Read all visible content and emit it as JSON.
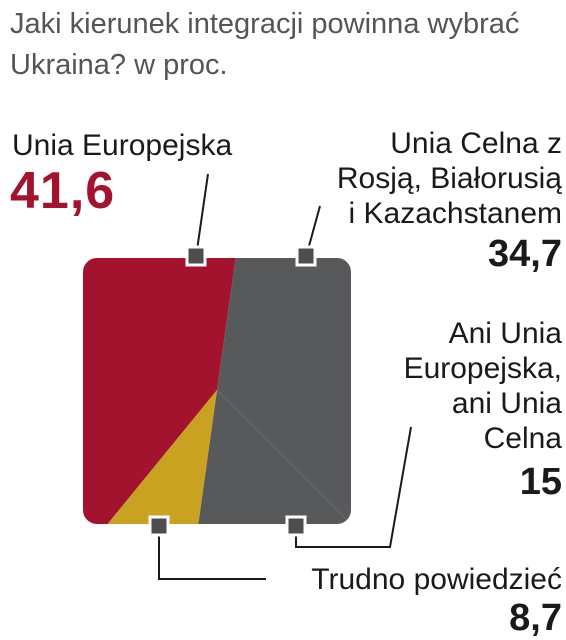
{
  "chart_data": {
    "type": "area",
    "title": "Jaki kierunek integracji powinna wybrać Ukraina? w proc.",
    "unit": "proc.",
    "series": [
      {
        "name": "Unia Europejska",
        "value": 41.6,
        "color": "#a3132e"
      },
      {
        "name": "Unia Celna z Rosją, Białorusią i Kazachstanem",
        "value": 34.7,
        "color": "#58595b"
      },
      {
        "name": "Ani Unia Europejska, ani Unia Celna",
        "value": 15,
        "color": "#58595b"
      },
      {
        "name": "Trudno powiedzieć",
        "value": 8.7,
        "color": "#c9a222"
      }
    ]
  },
  "text": {
    "title": "Jaki kierunek integracji powinna wybrać Ukraina? w proc.",
    "eu_label": "Unia Europejska",
    "eu_value": "41,6",
    "cu_label_1": "Unia Celna z",
    "cu_label_2": "Rosją, Białorusią",
    "cu_label_3": "i Kazachstanem",
    "cu_value": "34,7",
    "none_label_1": "Ani Unia",
    "none_label_2": "Europejska,",
    "none_label_3": "ani Unia",
    "none_label_4": "Celna",
    "none_value": "15",
    "dk_label": "Trudno powiedzieć",
    "dk_value": "8,7"
  },
  "colors": {
    "eu": "#a3132e",
    "gray": "#58595b",
    "gold": "#c9a222",
    "frame": "#ffffff",
    "marker": "#4d4d4d"
  }
}
